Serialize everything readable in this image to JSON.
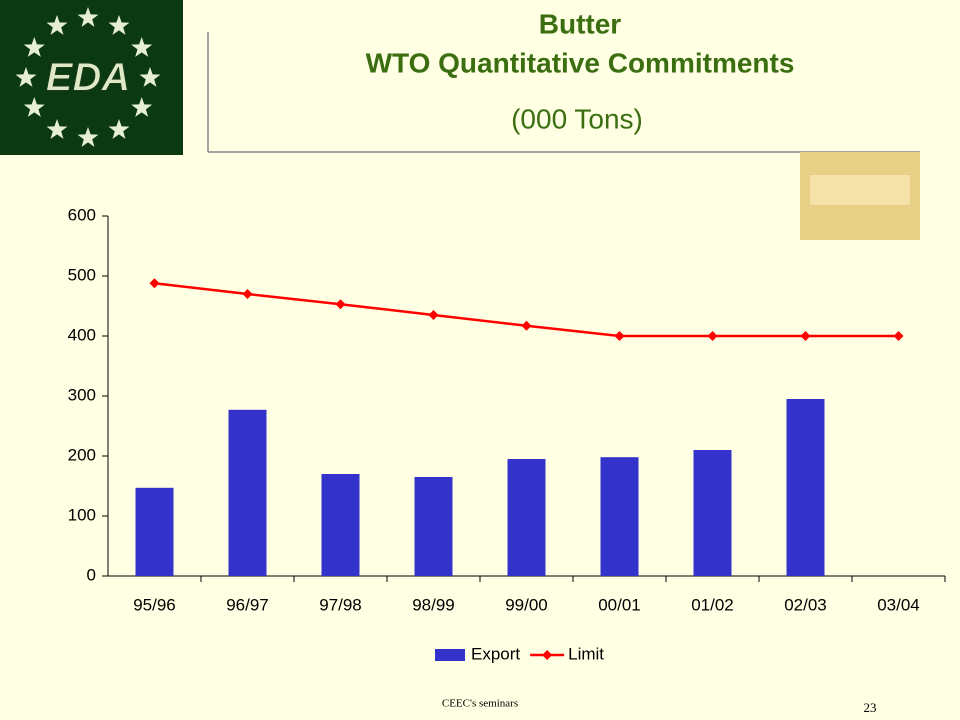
{
  "logo": {
    "text": "EDA"
  },
  "chart_data": {
    "type": "bar-line",
    "title": "Butter",
    "subtitle": "WTO Quantitative Commitments",
    "unit": "(000 Tons)",
    "categories": [
      "95/96",
      "96/97",
      "97/98",
      "98/99",
      "99/00",
      "00/01",
      "01/02",
      "02/03",
      "03/04"
    ],
    "series": [
      {
        "name": "Export",
        "type": "bar",
        "color": "#3333cc",
        "values": [
          147,
          277,
          170,
          165,
          195,
          198,
          210,
          295,
          null
        ]
      },
      {
        "name": "Limit",
        "type": "line",
        "color": "#ff0000",
        "values": [
          488,
          470,
          453,
          435,
          417,
          400,
          400,
          400,
          400
        ]
      }
    ],
    "ylim": [
      0,
      600
    ],
    "yticks": [
      0,
      100,
      200,
      300,
      400,
      500,
      600
    ],
    "legend": "bottom"
  },
  "footer": {
    "left": "CEEC's seminars",
    "page": "23"
  }
}
